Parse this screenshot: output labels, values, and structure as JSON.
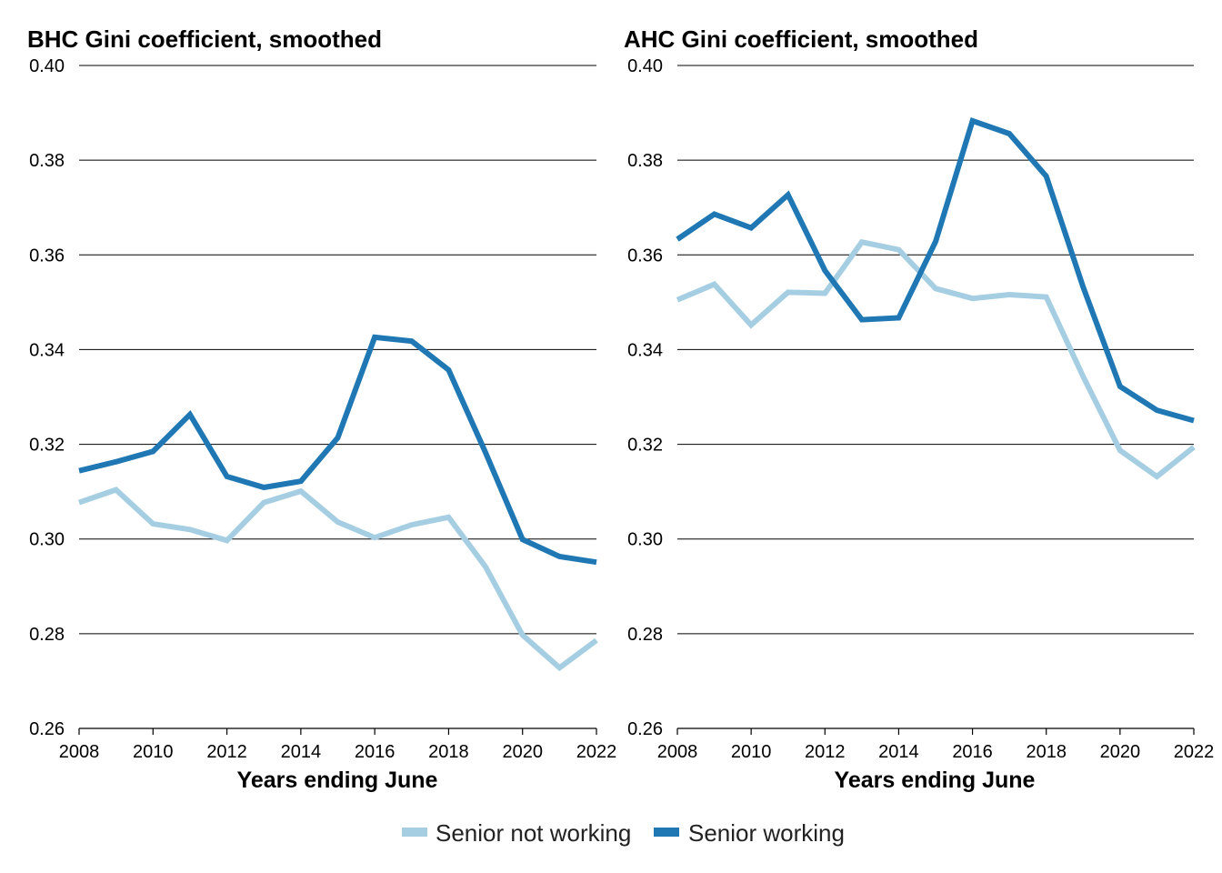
{
  "chart_data": [
    {
      "type": "line",
      "title": "BHC Gini coefficient, smoothed",
      "xlabel": "Years ending June",
      "ylabel": "",
      "x": [
        2008,
        2009,
        2010,
        2011,
        2012,
        2013,
        2014,
        2015,
        2016,
        2017,
        2018,
        2019,
        2020,
        2021,
        2022
      ],
      "xticks": [
        "2008",
        "2010",
        "2012",
        "2014",
        "2016",
        "2018",
        "2020",
        "2022"
      ],
      "yticks": [
        "0.26",
        "0.28",
        "0.30",
        "0.32",
        "0.34",
        "0.36",
        "0.38",
        "0.40"
      ],
      "xlim": [
        2008,
        2022
      ],
      "ylim": [
        0.26,
        0.4
      ],
      "grid": true,
      "series": [
        {
          "name": "Senior not working",
          "values": [
            0.3077,
            0.3104,
            0.3032,
            0.302,
            0.2997,
            0.3077,
            0.3101,
            0.3036,
            0.3003,
            0.303,
            0.3046,
            0.2941,
            0.2797,
            0.2728,
            0.2786
          ]
        },
        {
          "name": "Senior working",
          "values": [
            0.3144,
            0.3163,
            0.3185,
            0.3263,
            0.3132,
            0.3109,
            0.3122,
            0.3214,
            0.3426,
            0.3418,
            0.3357,
            0.3182,
            0.2999,
            0.2963,
            0.2951
          ]
        }
      ]
    },
    {
      "type": "line",
      "title": "AHC Gini coefficient, smoothed",
      "xlabel": "Years ending June",
      "ylabel": "",
      "x": [
        2008,
        2009,
        2010,
        2011,
        2012,
        2013,
        2014,
        2015,
        2016,
        2017,
        2018,
        2019,
        2020,
        2021,
        2022
      ],
      "xticks": [
        "2008",
        "2010",
        "2012",
        "2014",
        "2016",
        "2018",
        "2020",
        "2022"
      ],
      "yticks": [
        "0.26",
        "0.28",
        "0.30",
        "0.32",
        "0.34",
        "0.36",
        "0.38",
        "0.40"
      ],
      "xlim": [
        2008,
        2022
      ],
      "ylim": [
        0.26,
        0.4
      ],
      "grid": true,
      "series": [
        {
          "name": "Senior not working",
          "values": [
            0.3505,
            0.3538,
            0.3452,
            0.3521,
            0.3519,
            0.3627,
            0.3611,
            0.3529,
            0.3508,
            0.3516,
            0.3511,
            0.3343,
            0.3187,
            0.3132,
            0.3194
          ]
        },
        {
          "name": "Senior working",
          "values": [
            0.3633,
            0.3686,
            0.3657,
            0.3727,
            0.3567,
            0.3463,
            0.3467,
            0.3628,
            0.3883,
            0.3856,
            0.3766,
            0.3532,
            0.3322,
            0.3272,
            0.325
          ]
        }
      ]
    }
  ],
  "legend": {
    "position": "bottom-center",
    "items": [
      {
        "label": "Senior not working",
        "color": "#a6cee3"
      },
      {
        "label": "Senior working",
        "color": "#1f78b4"
      }
    ]
  },
  "colors": {
    "Senior not working": "#a6cee3",
    "Senior working": "#1f78b4",
    "grid": "#000000"
  }
}
